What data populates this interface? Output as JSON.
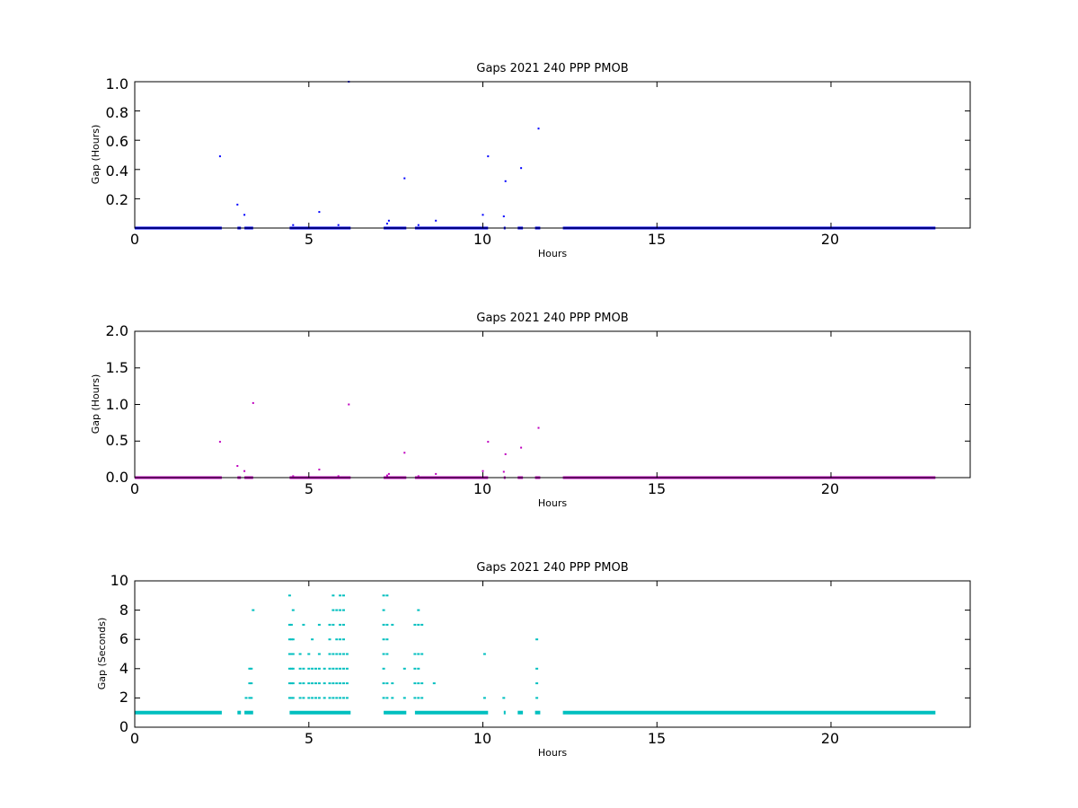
{
  "chart_data": [
    {
      "type": "scatter",
      "title": "Gaps 2021 240 PPP  PMOB",
      "xlabel": "Hours",
      "ylabel": "Gap (Hours)",
      "xlim": [
        0,
        24
      ],
      "ylim": [
        0,
        1.0
      ],
      "xticks": [
        "0",
        "5",
        "10",
        "15",
        "20"
      ],
      "yticks": [
        "0.2",
        "0.4",
        "0.6",
        "0.8",
        "1.0"
      ],
      "color": "#0000ff",
      "grid": false,
      "baseline_value": 0.0003,
      "baseline_ranges": [
        [
          0,
          2.5
        ],
        [
          2.95,
          3.05
        ],
        [
          3.15,
          3.4
        ],
        [
          4.45,
          6.2
        ],
        [
          7.15,
          7.8
        ],
        [
          8.05,
          10.15
        ],
        [
          10.6,
          10.65
        ],
        [
          11.0,
          11.15
        ],
        [
          11.5,
          11.65
        ],
        [
          12.3,
          23.0
        ]
      ],
      "points": [
        [
          2.45,
          0.49
        ],
        [
          2.95,
          0.16
        ],
        [
          3.15,
          0.09
        ],
        [
          4.55,
          0.02
        ],
        [
          5.3,
          0.11
        ],
        [
          5.85,
          0.02
        ],
        [
          6.15,
          1.0
        ],
        [
          7.25,
          0.03
        ],
        [
          7.3,
          0.05
        ],
        [
          7.75,
          0.34
        ],
        [
          8.15,
          0.02
        ],
        [
          8.65,
          0.05
        ],
        [
          10.0,
          0.09
        ],
        [
          10.15,
          0.49
        ],
        [
          10.6,
          0.08
        ],
        [
          10.65,
          0.32
        ],
        [
          11.1,
          0.41
        ],
        [
          11.6,
          0.68
        ]
      ]
    },
    {
      "type": "scatter",
      "title": "Gaps 2021 240 PPP  PMOB",
      "xlabel": "Hours",
      "ylabel": "Gap (Hours)",
      "xlim": [
        0,
        24
      ],
      "ylim": [
        0,
        2.0
      ],
      "xticks": [
        "0",
        "5",
        "10",
        "15",
        "20"
      ],
      "yticks": [
        "0.0",
        "0.5",
        "1.0",
        "1.5",
        "2.0"
      ],
      "color": "#bf00bf",
      "grid": false,
      "baseline_value": 0.0003,
      "baseline_ranges": [
        [
          0,
          2.5
        ],
        [
          2.95,
          3.05
        ],
        [
          3.15,
          3.4
        ],
        [
          4.45,
          6.2
        ],
        [
          7.15,
          7.8
        ],
        [
          8.05,
          10.15
        ],
        [
          10.6,
          10.65
        ],
        [
          11.0,
          11.15
        ],
        [
          11.5,
          11.65
        ],
        [
          12.3,
          23.0
        ]
      ],
      "points": [
        [
          2.45,
          0.49
        ],
        [
          2.95,
          0.16
        ],
        [
          3.15,
          0.09
        ],
        [
          3.4,
          1.02
        ],
        [
          4.55,
          0.02
        ],
        [
          5.3,
          0.11
        ],
        [
          5.85,
          0.02
        ],
        [
          6.15,
          1.0
        ],
        [
          7.25,
          0.03
        ],
        [
          7.3,
          0.05
        ],
        [
          7.75,
          0.34
        ],
        [
          8.15,
          0.02
        ],
        [
          8.65,
          0.05
        ],
        [
          10.0,
          0.09
        ],
        [
          10.15,
          0.49
        ],
        [
          10.6,
          0.08
        ],
        [
          10.65,
          0.32
        ],
        [
          11.1,
          0.41
        ],
        [
          11.6,
          0.68
        ]
      ]
    },
    {
      "type": "scatter",
      "title": "Gaps 2021 240 PPP  PMOB",
      "xlabel": "Hours",
      "ylabel": "Gap (Seconds)",
      "xlim": [
        0,
        24
      ],
      "ylim": [
        0,
        10
      ],
      "xticks": [
        "0",
        "5",
        "10",
        "15",
        "20"
      ],
      "yticks": [
        "0",
        "2",
        "4",
        "6",
        "8",
        "10"
      ],
      "color": "#00bfbf",
      "grid": false,
      "baseline_value": 1,
      "baseline_ranges": [
        [
          0,
          2.5
        ],
        [
          2.95,
          3.05
        ],
        [
          3.15,
          3.4
        ],
        [
          4.45,
          6.2
        ],
        [
          7.15,
          7.8
        ],
        [
          8.05,
          10.15
        ],
        [
          10.6,
          10.65
        ],
        [
          11.0,
          11.15
        ],
        [
          11.5,
          11.65
        ],
        [
          12.3,
          23.0
        ]
      ],
      "point_columns": [
        [
          3.2,
          [
            2
          ]
        ],
        [
          3.3,
          [
            2,
            3,
            4
          ]
        ],
        [
          3.35,
          [
            2,
            3,
            4
          ]
        ],
        [
          3.4,
          [
            8
          ]
        ],
        [
          4.45,
          [
            2,
            3,
            4,
            5,
            6,
            7,
            9
          ]
        ],
        [
          4.5,
          [
            2,
            3,
            4,
            5,
            6,
            7
          ]
        ],
        [
          4.55,
          [
            2,
            3,
            4,
            5,
            6,
            8
          ]
        ],
        [
          4.75,
          [
            2,
            3,
            4,
            5
          ]
        ],
        [
          4.85,
          [
            2,
            3,
            4,
            7
          ]
        ],
        [
          5.0,
          [
            2,
            3,
            4,
            5
          ]
        ],
        [
          5.1,
          [
            2,
            3,
            4,
            6
          ]
        ],
        [
          5.2,
          [
            2,
            3,
            4
          ]
        ],
        [
          5.3,
          [
            2,
            3,
            4,
            5,
            7
          ]
        ],
        [
          5.45,
          [
            2,
            3,
            4
          ]
        ],
        [
          5.6,
          [
            2,
            3,
            4,
            5,
            6,
            7
          ]
        ],
        [
          5.7,
          [
            2,
            3,
            4,
            5,
            7,
            8,
            9
          ]
        ],
        [
          5.8,
          [
            2,
            3,
            4,
            5,
            6,
            8
          ]
        ],
        [
          5.9,
          [
            2,
            3,
            4,
            5,
            6,
            7,
            8,
            9
          ]
        ],
        [
          6.0,
          [
            2,
            3,
            4,
            5,
            6,
            7,
            8,
            9
          ]
        ],
        [
          6.1,
          [
            2,
            3,
            4,
            5
          ]
        ],
        [
          7.15,
          [
            2,
            3,
            4,
            5,
            6,
            7,
            8,
            9
          ]
        ],
        [
          7.25,
          [
            2,
            3,
            5,
            6,
            7,
            9
          ]
        ],
        [
          7.4,
          [
            2,
            3,
            7
          ]
        ],
        [
          7.75,
          [
            2,
            4
          ]
        ],
        [
          8.05,
          [
            2,
            3,
            4,
            5,
            7
          ]
        ],
        [
          8.15,
          [
            2,
            3,
            4,
            5,
            7,
            8
          ]
        ],
        [
          8.25,
          [
            2,
            3,
            5,
            7
          ]
        ],
        [
          8.6,
          [
            3
          ]
        ],
        [
          10.05,
          [
            2,
            5
          ]
        ],
        [
          10.6,
          [
            2
          ]
        ],
        [
          11.55,
          [
            2,
            3,
            4,
            6
          ]
        ]
      ]
    }
  ]
}
